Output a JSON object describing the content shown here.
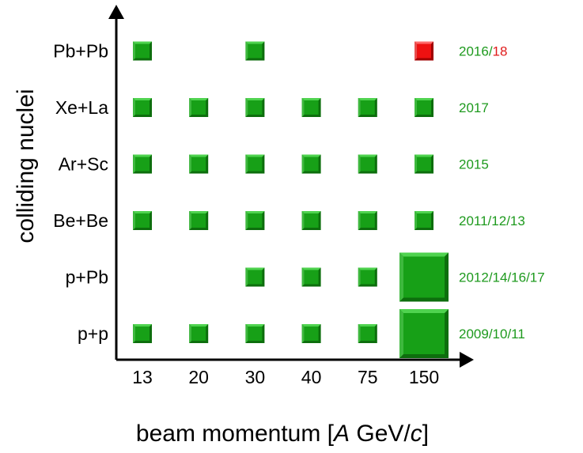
{
  "chart_data": {
    "type": "scatter",
    "title": "",
    "xlabel": {
      "pre": "beam momentum [",
      "italic1": "A",
      "mid": " GeV/",
      "italic2": "c",
      "post": "]"
    },
    "ylabel": "colliding nuclei",
    "x_categories": [
      "13",
      "20",
      "30",
      "40",
      "75",
      "150"
    ],
    "y_categories": [
      "p+p",
      "p+Pb",
      "Be+Be",
      "Ar+Sc",
      "Xe+La",
      "Pb+Pb"
    ],
    "years": [
      {
        "system": "p+p",
        "parts": [
          {
            "text": "2009/10/11",
            "color": "#1e9a1e"
          }
        ]
      },
      {
        "system": "p+Pb",
        "parts": [
          {
            "text": "2012/14/16/17",
            "color": "#1e9a1e"
          }
        ]
      },
      {
        "system": "Be+Be",
        "parts": [
          {
            "text": "2011/12/13",
            "color": "#1e9a1e"
          }
        ]
      },
      {
        "system": "Ar+Sc",
        "parts": [
          {
            "text": "2015",
            "color": "#1e9a1e"
          }
        ]
      },
      {
        "system": "Xe+La",
        "parts": [
          {
            "text": "2017",
            "color": "#1e9a1e"
          }
        ]
      },
      {
        "system": "Pb+Pb",
        "parts": [
          {
            "text": "2016/",
            "color": "#1e9a1e"
          },
          {
            "text": "18",
            "color": "#e01b1b"
          }
        ]
      }
    ],
    "points": [
      {
        "system": "p+p",
        "momentum": "13",
        "status": "recorded",
        "size": "small"
      },
      {
        "system": "p+p",
        "momentum": "20",
        "status": "recorded",
        "size": "small"
      },
      {
        "system": "p+p",
        "momentum": "30",
        "status": "recorded",
        "size": "small"
      },
      {
        "system": "p+p",
        "momentum": "40",
        "status": "recorded",
        "size": "small"
      },
      {
        "system": "p+p",
        "momentum": "75",
        "status": "recorded",
        "size": "small"
      },
      {
        "system": "p+p",
        "momentum": "150",
        "status": "recorded",
        "size": "large"
      },
      {
        "system": "p+Pb",
        "momentum": "30",
        "status": "recorded",
        "size": "small"
      },
      {
        "system": "p+Pb",
        "momentum": "40",
        "status": "recorded",
        "size": "small"
      },
      {
        "system": "p+Pb",
        "momentum": "75",
        "status": "recorded",
        "size": "small"
      },
      {
        "system": "p+Pb",
        "momentum": "150",
        "status": "recorded",
        "size": "large"
      },
      {
        "system": "Be+Be",
        "momentum": "13",
        "status": "recorded",
        "size": "small"
      },
      {
        "system": "Be+Be",
        "momentum": "20",
        "status": "recorded",
        "size": "small"
      },
      {
        "system": "Be+Be",
        "momentum": "30",
        "status": "recorded",
        "size": "small"
      },
      {
        "system": "Be+Be",
        "momentum": "40",
        "status": "recorded",
        "size": "small"
      },
      {
        "system": "Be+Be",
        "momentum": "75",
        "status": "recorded",
        "size": "small"
      },
      {
        "system": "Be+Be",
        "momentum": "150",
        "status": "recorded",
        "size": "small"
      },
      {
        "system": "Ar+Sc",
        "momentum": "13",
        "status": "recorded",
        "size": "small"
      },
      {
        "system": "Ar+Sc",
        "momentum": "20",
        "status": "recorded",
        "size": "small"
      },
      {
        "system": "Ar+Sc",
        "momentum": "30",
        "status": "recorded",
        "size": "small"
      },
      {
        "system": "Ar+Sc",
        "momentum": "40",
        "status": "recorded",
        "size": "small"
      },
      {
        "system": "Ar+Sc",
        "momentum": "75",
        "status": "recorded",
        "size": "small"
      },
      {
        "system": "Ar+Sc",
        "momentum": "150",
        "status": "recorded",
        "size": "small"
      },
      {
        "system": "Xe+La",
        "momentum": "13",
        "status": "recorded",
        "size": "small"
      },
      {
        "system": "Xe+La",
        "momentum": "20",
        "status": "recorded",
        "size": "small"
      },
      {
        "system": "Xe+La",
        "momentum": "30",
        "status": "recorded",
        "size": "small"
      },
      {
        "system": "Xe+La",
        "momentum": "40",
        "status": "recorded",
        "size": "small"
      },
      {
        "system": "Xe+La",
        "momentum": "75",
        "status": "recorded",
        "size": "small"
      },
      {
        "system": "Xe+La",
        "momentum": "150",
        "status": "recorded",
        "size": "small"
      },
      {
        "system": "Pb+Pb",
        "momentum": "13",
        "status": "recorded",
        "size": "small"
      },
      {
        "system": "Pb+Pb",
        "momentum": "30",
        "status": "recorded",
        "size": "small"
      },
      {
        "system": "Pb+Pb",
        "momentum": "150",
        "status": "planned",
        "size": "small"
      }
    ],
    "colors": {
      "recorded": "#17a017",
      "recorded_dark": "#0d6e0d",
      "recorded_light": "#4fd34f",
      "planned": "#ee1111",
      "planned_dark": "#a00000",
      "planned_light": "#ff6a6a"
    },
    "grid": false,
    "legend": "none"
  }
}
